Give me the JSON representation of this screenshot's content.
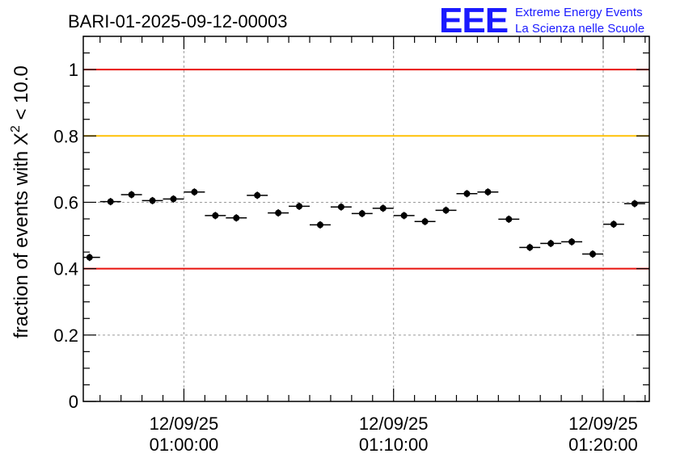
{
  "title": "BARI-01-2025-09-12-00003",
  "logo": {
    "mark": "EEE",
    "line1": "Extreme Energy Events",
    "line2": "La Scienza nelle Scuole"
  },
  "chart_data": {
    "type": "scatter",
    "title": "BARI-01-2025-09-12-00003",
    "ylabel_prefix": "fraction of events with ",
    "ylabel_symbol": "X",
    "ylabel_sup": "2",
    "ylabel_suffix": " < 10.0",
    "xlabel": "",
    "x_unit": "minutes after 01:00:00 on 12/09/25",
    "xlim": [
      -4.8,
      22.2
    ],
    "ylim": [
      0,
      1.1
    ],
    "y_ticks": [
      {
        "v": 0,
        "label": "0"
      },
      {
        "v": 0.2,
        "label": "0.2"
      },
      {
        "v": 0.4,
        "label": "0.4"
      },
      {
        "v": 0.6,
        "label": "0.6"
      },
      {
        "v": 0.8,
        "label": "0.8"
      },
      {
        "v": 1.0,
        "label": "1"
      }
    ],
    "x_ticks": [
      {
        "v": 0,
        "date": "12/09/25",
        "time": "01:00:00"
      },
      {
        "v": 10,
        "date": "12/09/25",
        "time": "01:10:00"
      },
      {
        "v": 20,
        "date": "12/09/25",
        "time": "01:20:00"
      }
    ],
    "grid": true,
    "reference_lines": [
      {
        "y": 1.0,
        "color": "#e8120c"
      },
      {
        "y": 0.8,
        "color": "#ffc107"
      },
      {
        "y": 0.4,
        "color": "#e8120c"
      }
    ],
    "bin_width_min": 1.0,
    "series": [
      {
        "marker_color": "#000000",
        "x": [
          -4.5,
          -3.5,
          -2.5,
          -1.5,
          -0.5,
          0.5,
          1.5,
          2.5,
          3.5,
          4.5,
          5.5,
          6.5,
          7.5,
          8.5,
          9.5,
          10.5,
          11.5,
          12.5,
          13.5,
          14.5,
          15.5,
          16.5,
          17.5,
          18.5,
          19.5,
          20.5,
          21.5
        ],
        "y": [
          0.434,
          0.602,
          0.623,
          0.605,
          0.61,
          0.631,
          0.56,
          0.553,
          0.621,
          0.568,
          0.588,
          0.532,
          0.586,
          0.566,
          0.582,
          0.56,
          0.542,
          0.576,
          0.626,
          0.631,
          0.549,
          0.464,
          0.476,
          0.481,
          0.444,
          0.534,
          0.596
        ],
        "yerr": 0.011
      }
    ]
  }
}
